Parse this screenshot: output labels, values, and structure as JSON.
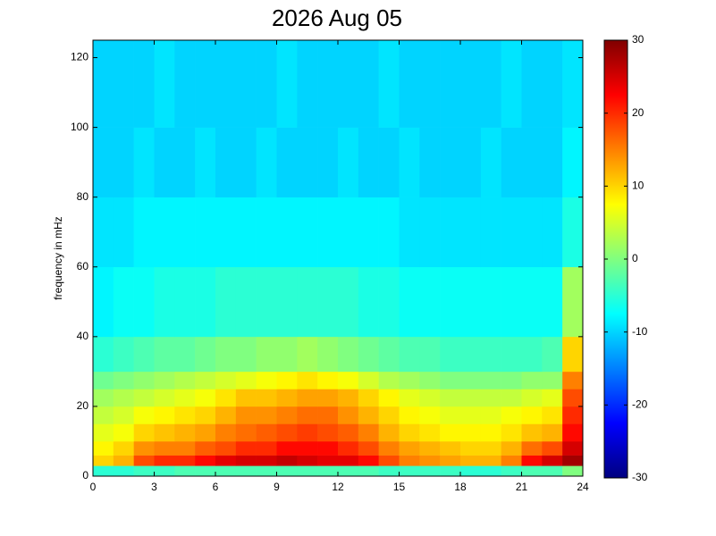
{
  "chart_data": {
    "type": "heatmap",
    "title": "2026 Aug 05",
    "y_label": "frequency in mHz",
    "colormap": "jet",
    "x_bins": [
      0,
      1,
      2,
      3,
      4,
      5,
      6,
      7,
      8,
      9,
      10,
      11,
      12,
      13,
      14,
      15,
      16,
      17,
      18,
      19,
      20,
      21,
      22,
      23,
      24
    ],
    "y_bins": [
      0,
      3,
      6,
      10,
      15,
      20,
      25,
      30,
      40,
      60,
      80,
      100,
      125
    ],
    "values": [
      [
        -5,
        -5,
        -4,
        -4,
        -3,
        -3,
        -3,
        -3,
        -3,
        -3,
        -3,
        -3,
        -3,
        -3,
        -4,
        -4,
        -4,
        -4,
        -5,
        -5,
        -4,
        -3,
        -3,
        0
      ],
      [
        10,
        12,
        18,
        20,
        20,
        22,
        24,
        25,
        25,
        26,
        25,
        24,
        24,
        22,
        18,
        15,
        14,
        13,
        12,
        12,
        15,
        22,
        25,
        28
      ],
      [
        8,
        10,
        14,
        15,
        15,
        17,
        18,
        20,
        20,
        22,
        22,
        22,
        20,
        18,
        15,
        13,
        12,
        11,
        10,
        10,
        12,
        16,
        18,
        25
      ],
      [
        6,
        7,
        10,
        11,
        12,
        13,
        15,
        16,
        17,
        18,
        19,
        18,
        17,
        15,
        12,
        10,
        9,
        8,
        8,
        8,
        9,
        11,
        12,
        22
      ],
      [
        4,
        5,
        7,
        8,
        9,
        10,
        12,
        14,
        14,
        15,
        16,
        16,
        14,
        12,
        10,
        8,
        7,
        6,
        6,
        6,
        7,
        8,
        9,
        20
      ],
      [
        2,
        3,
        4,
        5,
        6,
        7,
        9,
        11,
        11,
        12,
        13,
        13,
        12,
        10,
        8,
        6,
        5,
        4,
        4,
        4,
        4,
        5,
        6,
        18
      ],
      [
        -1,
        0,
        1,
        2,
        3,
        4,
        5,
        6,
        7,
        8,
        9,
        8,
        7,
        5,
        3,
        2,
        1,
        0,
        0,
        0,
        0,
        1,
        1,
        15
      ],
      [
        -5,
        -4,
        -3,
        -2,
        -2,
        -1,
        0,
        0,
        1,
        1,
        2,
        1,
        0,
        -1,
        -2,
        -3,
        -3,
        -4,
        -4,
        -4,
        -4,
        -4,
        -3,
        10
      ],
      [
        -8,
        -7,
        -7,
        -6,
        -6,
        -6,
        -5,
        -5,
        -5,
        -5,
        -5,
        -5,
        -5,
        -6,
        -6,
        -7,
        -7,
        -7,
        -7,
        -7,
        -7,
        -7,
        -7,
        2
      ],
      [
        -9,
        -9,
        -8,
        -8,
        -8,
        -8,
        -8,
        -8,
        -8,
        -8,
        -8,
        -8,
        -8,
        -8,
        -8,
        -9,
        -9,
        -9,
        -9,
        -9,
        -9,
        -9,
        -9,
        -6
      ],
      [
        -10,
        -10,
        -9,
        -10,
        -10,
        -9,
        -10,
        -10,
        -9,
        -10,
        -10,
        -10,
        -9,
        -10,
        -10,
        -9,
        -10,
        -10,
        -10,
        -9,
        -10,
        -10,
        -10,
        -8
      ],
      [
        -10,
        -10,
        -10,
        -9,
        -10,
        -10,
        -10,
        -10,
        -10,
        -9,
        -10,
        -10,
        -10,
        -10,
        -9,
        -10,
        -10,
        -10,
        -10,
        -10,
        -9,
        -10,
        -10,
        -9
      ]
    ],
    "xlim": [
      0,
      24
    ],
    "xticks": [
      0,
      3,
      6,
      9,
      12,
      15,
      18,
      21,
      24
    ],
    "ylim": [
      0,
      125
    ],
    "yticks": [
      0,
      20,
      40,
      60,
      80,
      100,
      120
    ],
    "zlim": [
      -30,
      30
    ],
    "zticks": [
      -30,
      -20,
      -10,
      0,
      10,
      20,
      30
    ]
  }
}
